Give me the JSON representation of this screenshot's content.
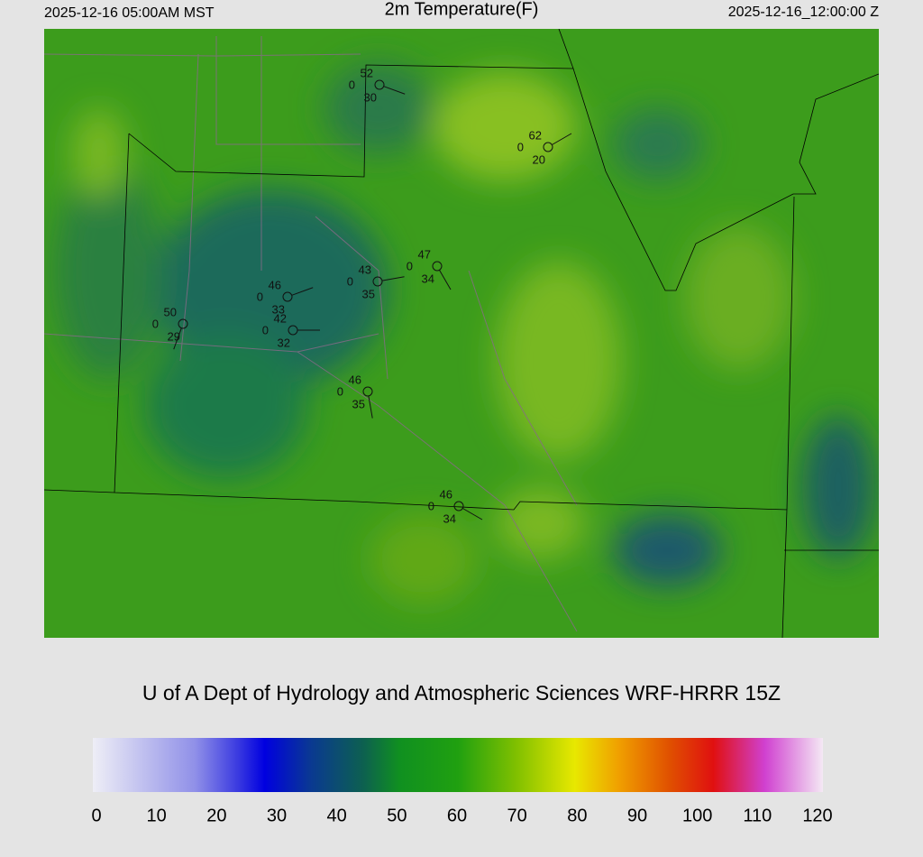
{
  "header": {
    "left": "2025-12-16 05:00AM MST",
    "title": "2m Temperature(F)",
    "right": "2025-12-16_12:00:00 Z"
  },
  "stations": [
    {
      "temperature": 52,
      "wind": 0,
      "dewpoint": 30
    },
    {
      "temperature": 62,
      "wind": 0,
      "dewpoint": 20
    },
    {
      "temperature": 47,
      "wind": 0,
      "dewpoint": 34
    },
    {
      "temperature": 43,
      "wind": 0,
      "dewpoint": 35
    },
    {
      "temperature": 46,
      "wind": 0,
      "dewpoint": 33
    },
    {
      "temperature": 42,
      "wind": 0,
      "dewpoint": 32
    },
    {
      "temperature": 50,
      "wind": 0,
      "dewpoint": 29
    },
    {
      "temperature": 46,
      "wind": 0,
      "dewpoint": 35
    },
    {
      "temperature": 46,
      "wind": 0,
      "dewpoint": 34
    }
  ],
  "credit": "U of A Dept of Hydrology and Atmospheric Sciences WRF-HRRR 15Z",
  "colorbar": {
    "ticks": [
      0,
      10,
      20,
      30,
      40,
      50,
      60,
      70,
      80,
      90,
      100,
      110,
      120
    ]
  }
}
